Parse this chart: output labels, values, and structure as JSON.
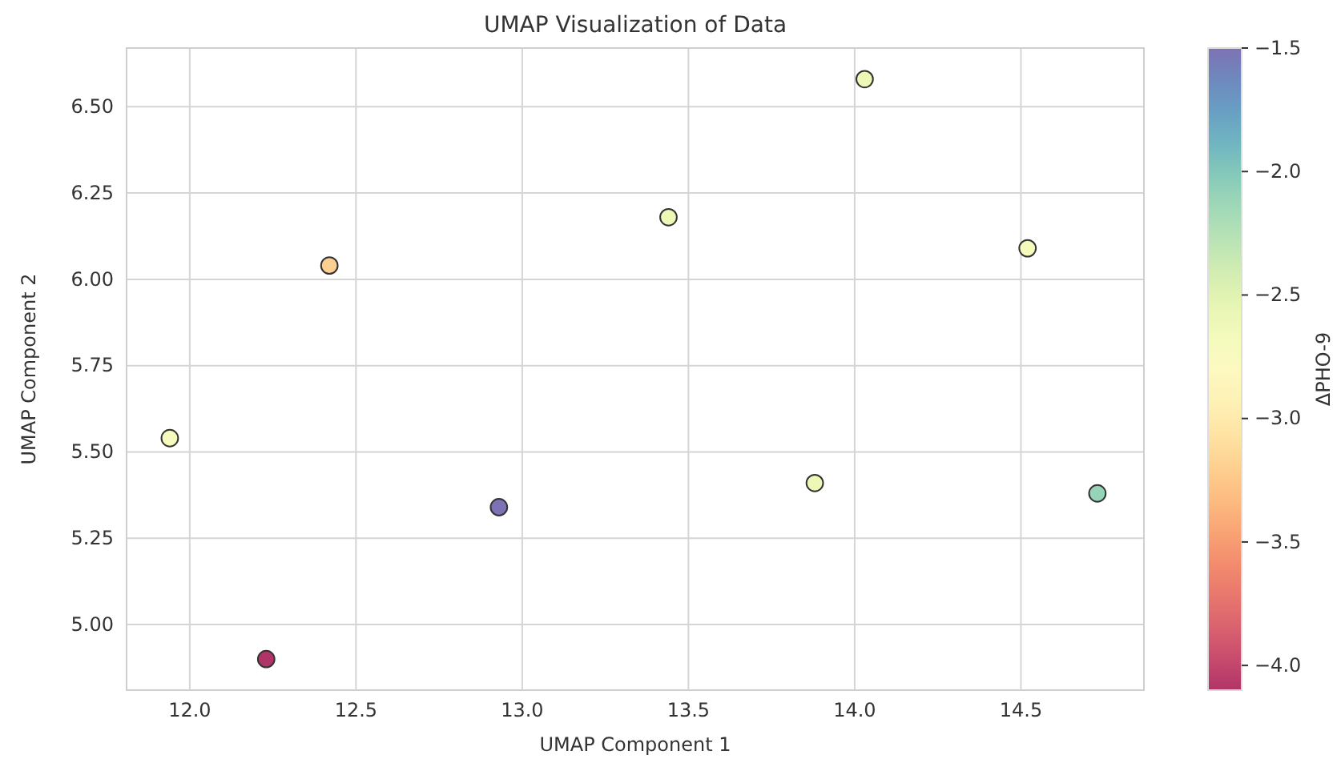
{
  "chart_data": {
    "type": "scatter",
    "title": "UMAP Visualization of Data",
    "xlabel": "UMAP Component 1",
    "ylabel": "UMAP Component 2",
    "clabel": "ΔPHO-9",
    "x": [
      11.94,
      12.42,
      12.23,
      12.93,
      13.44,
      14.03,
      14.52,
      13.88,
      14.73
    ],
    "values": [
      5.54,
      6.04,
      4.9,
      5.34,
      6.18,
      6.58,
      6.09,
      5.41,
      5.38
    ],
    "cvalues": [
      -2.7,
      -3.2,
      -4.1,
      -1.5,
      -2.6,
      -2.6,
      -2.7,
      -2.6,
      -2.1
    ],
    "xlim": [
      11.81,
      14.87
    ],
    "ylim": [
      4.81,
      6.67
    ],
    "xticks": [
      {
        "value": 12,
        "label": "12.0"
      },
      {
        "value": 12.5,
        "label": "12.5"
      },
      {
        "value": 13,
        "label": "13.0"
      },
      {
        "value": 13.5,
        "label": "13.5"
      },
      {
        "value": 14,
        "label": "14.0"
      },
      {
        "value": 14.5,
        "label": "14.5"
      }
    ],
    "yticks": [
      {
        "value": 5,
        "label": "5.00"
      },
      {
        "value": 5.25,
        "label": "5.25"
      },
      {
        "value": 5.5,
        "label": "5.50"
      },
      {
        "value": 5.75,
        "label": "5.75"
      },
      {
        "value": 6,
        "label": "6.00"
      },
      {
        "value": 6.25,
        "label": "6.25"
      },
      {
        "value": 6.5,
        "label": "6.50"
      }
    ],
    "clim": [
      -4.1,
      -1.5
    ],
    "cticks": [
      {
        "value": -4,
        "label": "−4.0"
      },
      {
        "value": -3.5,
        "label": "−3.5"
      },
      {
        "value": -3,
        "label": "−3.0"
      },
      {
        "value": -2.5,
        "label": "−2.5"
      },
      {
        "value": -2,
        "label": "−2.0"
      },
      {
        "value": -1.5,
        "label": "−1.5"
      }
    ],
    "grid": true,
    "marker": "circle"
  }
}
